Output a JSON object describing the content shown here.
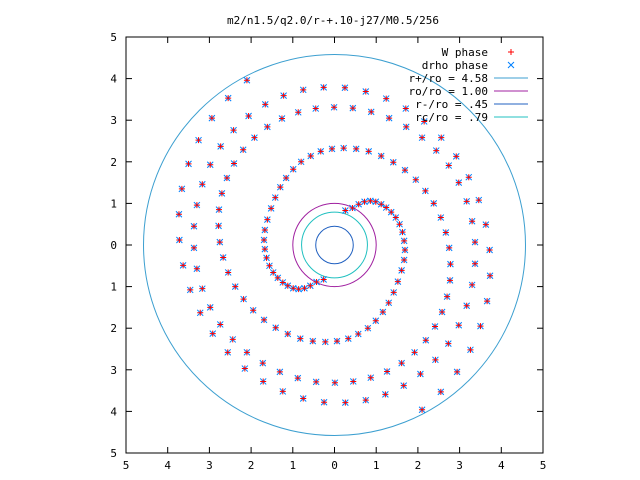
{
  "chart_data": {
    "type": "scatter",
    "title": "m2/n1.5/q2.0/r-+.10-j27/M0.5/256",
    "xlabel": "",
    "ylabel": "",
    "xlim": [
      -5,
      5
    ],
    "ylim": [
      -5,
      5
    ],
    "x_ticks": [
      -5,
      -4,
      -3,
      -2,
      -1,
      0,
      1,
      2,
      3,
      4,
      5
    ],
    "y_ticks": [
      -5,
      -4,
      -3,
      -2,
      -1,
      0,
      1,
      2,
      3,
      4,
      5
    ],
    "x_tick_labels": [
      "5",
      "4",
      "3",
      "2",
      "1",
      "0",
      "1",
      "2",
      "3",
      "4",
      "5"
    ],
    "y_tick_labels": [
      "5",
      "4",
      "3",
      "2",
      "1",
      "0",
      "1",
      "2",
      "3",
      "4",
      "5"
    ],
    "grid": false,
    "legend_position": "top-right",
    "point_series": [
      {
        "name": "W phase",
        "marker": "plus",
        "color": "#ff0000"
      },
      {
        "name": "drho phase",
        "marker": "cross",
        "color": "#0080ff"
      }
    ],
    "circles": [
      {
        "name": "r+/ro = 4.58",
        "radius": 4.58,
        "color": "#3c9fd0"
      },
      {
        "name": "ro/ro = 1.00",
        "radius": 1.0,
        "color": "#a020a0"
      },
      {
        "name": "r-/ro = .45",
        "radius": 0.45,
        "color": "#2060c0"
      },
      {
        "name": "rc/ro = .79",
        "radius": 0.79,
        "color": "#20c0c0"
      }
    ],
    "spiral_arms": [
      {
        "points": [
          [
            0.26,
            0.83
          ],
          [
            0.43,
            0.89
          ],
          [
            0.58,
            0.98
          ],
          [
            0.72,
            1.04
          ],
          [
            0.86,
            1.06
          ],
          [
            0.99,
            1.04
          ],
          [
            1.12,
            0.98
          ],
          [
            1.24,
            0.9
          ],
          [
            1.36,
            0.79
          ],
          [
            1.47,
            0.66
          ],
          [
            1.56,
            0.5
          ],
          [
            1.63,
            0.31
          ],
          [
            1.67,
            0.1
          ],
          [
            1.69,
            -0.12
          ],
          [
            1.67,
            -0.36
          ],
          [
            1.61,
            -0.61
          ],
          [
            1.52,
            -0.88
          ],
          [
            1.42,
            -1.14
          ],
          [
            1.3,
            -1.39
          ],
          [
            1.16,
            -1.61
          ],
          [
            0.99,
            -1.82
          ],
          [
            0.8,
            -2.0
          ],
          [
            0.57,
            -2.14
          ],
          [
            0.33,
            -2.25
          ],
          [
            0.06,
            -2.31
          ],
          [
            -0.22,
            -2.33
          ],
          [
            -0.52,
            -2.31
          ],
          [
            -0.82,
            -2.25
          ],
          [
            -1.12,
            -2.14
          ],
          [
            -1.41,
            -1.99
          ],
          [
            -1.69,
            -1.8
          ],
          [
            -1.95,
            -1.57
          ],
          [
            -2.18,
            -1.3
          ],
          [
            -2.38,
            -1.0
          ],
          [
            -2.55,
            -0.66
          ],
          [
            -2.67,
            -0.3
          ],
          [
            -2.75,
            0.07
          ],
          [
            -2.78,
            0.46
          ],
          [
            -2.77,
            0.85
          ],
          [
            -2.7,
            1.24
          ],
          [
            -2.58,
            1.61
          ],
          [
            -2.41,
            1.96
          ],
          [
            -2.19,
            2.29
          ],
          [
            -1.92,
            2.58
          ],
          [
            -1.61,
            2.84
          ],
          [
            -1.26,
            3.04
          ],
          [
            -0.87,
            3.19
          ],
          [
            -0.45,
            3.28
          ],
          [
            -0.01,
            3.31
          ],
          [
            0.44,
            3.29
          ],
          [
            0.88,
            3.2
          ],
          [
            1.31,
            3.05
          ],
          [
            1.72,
            2.84
          ],
          [
            2.1,
            2.58
          ],
          [
            2.44,
            2.27
          ],
          [
            2.74,
            1.91
          ],
          [
            2.98,
            1.5
          ],
          [
            3.17,
            1.05
          ],
          [
            3.3,
            0.57
          ],
          [
            3.37,
            0.07
          ],
          [
            3.37,
            -0.45
          ],
          [
            3.3,
            -0.96
          ],
          [
            3.17,
            -1.46
          ],
          [
            2.98,
            -1.93
          ],
          [
            2.73,
            -2.37
          ],
          [
            2.42,
            -2.76
          ],
          [
            2.06,
            -3.1
          ],
          [
            1.66,
            -3.38
          ],
          [
            1.22,
            -3.59
          ],
          [
            0.75,
            -3.73
          ],
          [
            0.26,
            -3.79
          ],
          [
            -0.25,
            -3.78
          ],
          [
            -0.75,
            -3.69
          ],
          [
            -1.24,
            -3.52
          ],
          [
            -1.71,
            -3.28
          ],
          [
            -2.15,
            -2.97
          ],
          [
            -2.56,
            -2.58
          ],
          [
            -2.92,
            -2.13
          ],
          [
            -3.22,
            -1.63
          ],
          [
            -3.46,
            -1.08
          ],
          [
            -3.63,
            -0.49
          ],
          [
            -3.72,
            0.12
          ],
          [
            -3.73,
            0.74
          ],
          [
            -3.66,
            1.35
          ],
          [
            -3.5,
            1.95
          ],
          [
            -3.26,
            2.52
          ],
          [
            -2.94,
            3.05
          ],
          [
            -2.55,
            3.53
          ],
          [
            -2.1,
            3.96
          ]
        ]
      },
      {
        "points": [
          [
            -0.26,
            -0.83
          ],
          [
            -0.43,
            -0.89
          ],
          [
            -0.58,
            -0.98
          ],
          [
            -0.72,
            -1.04
          ],
          [
            -0.86,
            -1.06
          ],
          [
            -0.99,
            -1.04
          ],
          [
            -1.12,
            -0.98
          ],
          [
            -1.24,
            -0.9
          ],
          [
            -1.36,
            -0.79
          ],
          [
            -1.47,
            -0.66
          ],
          [
            -1.56,
            -0.5
          ],
          [
            -1.63,
            -0.31
          ],
          [
            -1.67,
            -0.1
          ],
          [
            -1.69,
            0.12
          ],
          [
            -1.67,
            0.36
          ],
          [
            -1.61,
            0.61
          ],
          [
            -1.52,
            0.88
          ],
          [
            -1.42,
            1.14
          ],
          [
            -1.3,
            1.39
          ],
          [
            -1.16,
            1.61
          ],
          [
            -0.99,
            1.82
          ],
          [
            -0.8,
            2.0
          ],
          [
            -0.57,
            2.14
          ],
          [
            -0.33,
            2.25
          ],
          [
            -0.06,
            2.31
          ],
          [
            0.22,
            2.33
          ],
          [
            0.52,
            2.31
          ],
          [
            0.82,
            2.25
          ],
          [
            1.12,
            2.14
          ],
          [
            1.41,
            1.99
          ],
          [
            1.69,
            1.8
          ],
          [
            1.95,
            1.57
          ],
          [
            2.18,
            1.3
          ],
          [
            2.38,
            1.0
          ],
          [
            2.55,
            0.66
          ],
          [
            2.67,
            0.3
          ],
          [
            2.75,
            -0.07
          ],
          [
            2.78,
            -0.46
          ],
          [
            2.77,
            -0.85
          ],
          [
            2.7,
            -1.24
          ],
          [
            2.58,
            -1.61
          ],
          [
            2.41,
            -1.96
          ],
          [
            2.19,
            -2.29
          ],
          [
            1.92,
            -2.58
          ],
          [
            1.61,
            -2.84
          ],
          [
            1.26,
            -3.04
          ],
          [
            0.87,
            -3.19
          ],
          [
            0.45,
            -3.28
          ],
          [
            0.01,
            -3.31
          ],
          [
            -0.44,
            -3.29
          ],
          [
            -0.88,
            -3.2
          ],
          [
            -1.31,
            -3.05
          ],
          [
            -1.72,
            -2.84
          ],
          [
            -2.1,
            -2.58
          ],
          [
            -2.44,
            -2.27
          ],
          [
            -2.74,
            -1.91
          ],
          [
            -2.98,
            -1.5
          ],
          [
            -3.17,
            -1.05
          ],
          [
            -3.3,
            -0.57
          ],
          [
            -3.37,
            -0.07
          ],
          [
            -3.37,
            0.45
          ],
          [
            -3.3,
            0.96
          ],
          [
            -3.17,
            1.46
          ],
          [
            -2.98,
            1.93
          ],
          [
            -2.73,
            2.37
          ],
          [
            -2.42,
            2.76
          ],
          [
            -2.06,
            3.1
          ],
          [
            -1.66,
            3.38
          ],
          [
            -1.22,
            3.59
          ],
          [
            -0.75,
            3.73
          ],
          [
            -0.26,
            3.79
          ],
          [
            0.25,
            3.78
          ],
          [
            0.75,
            3.69
          ],
          [
            1.24,
            3.52
          ],
          [
            1.71,
            3.28
          ],
          [
            2.15,
            2.97
          ],
          [
            2.56,
            2.58
          ],
          [
            2.92,
            2.13
          ],
          [
            3.22,
            1.63
          ],
          [
            3.46,
            1.08
          ],
          [
            3.63,
            0.49
          ],
          [
            3.72,
            -0.12
          ],
          [
            3.73,
            -0.74
          ],
          [
            3.66,
            -1.35
          ],
          [
            3.5,
            -1.95
          ],
          [
            3.26,
            -2.52
          ],
          [
            2.94,
            -3.05
          ],
          [
            2.55,
            -3.53
          ],
          [
            2.1,
            -3.96
          ]
        ]
      }
    ]
  }
}
